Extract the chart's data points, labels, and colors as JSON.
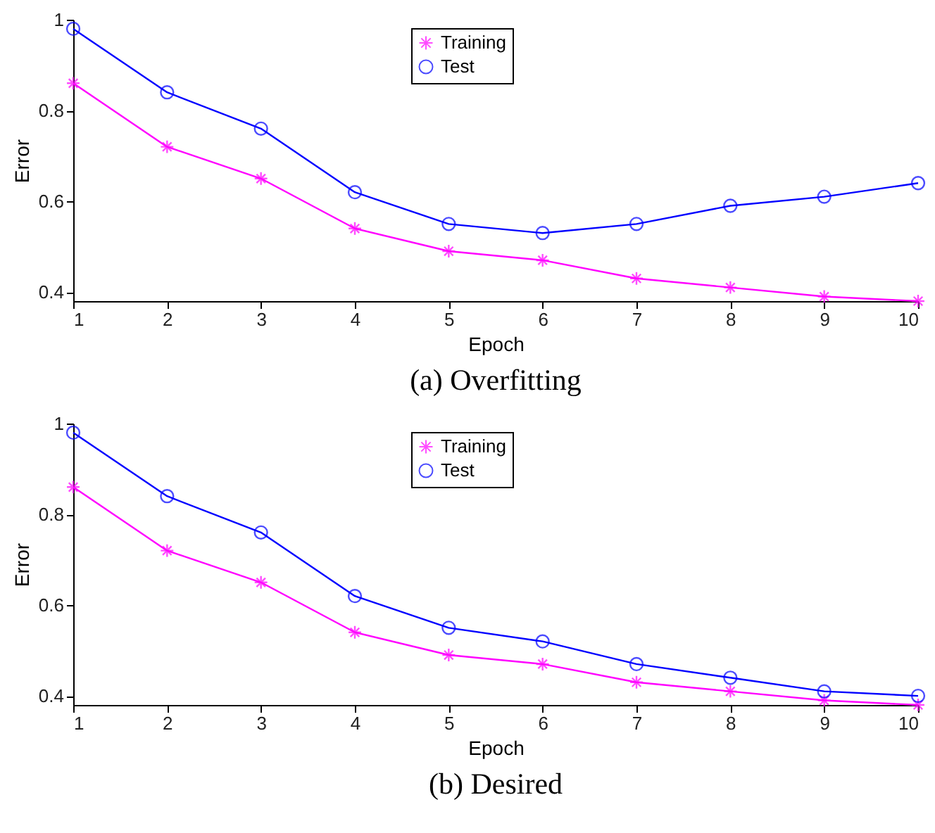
{
  "chart_data": [
    {
      "type": "line",
      "title": "(a) Overfitting",
      "xlabel": "Epoch",
      "ylabel": "Error",
      "x": [
        1,
        2,
        3,
        4,
        5,
        6,
        7,
        8,
        9,
        10
      ],
      "xlim": [
        1,
        10
      ],
      "xticks": [
        1,
        2,
        3,
        4,
        5,
        6,
        7,
        8,
        9,
        10
      ],
      "ylim": [
        0.38,
        1
      ],
      "yticks": [
        0.4,
        0.6,
        0.8,
        1
      ],
      "legend": "top",
      "series": [
        {
          "name": "Training",
          "color": "#ff00ff",
          "marker": "cross",
          "values": [
            0.86,
            0.72,
            0.65,
            0.54,
            0.49,
            0.47,
            0.43,
            0.41,
            0.39,
            0.38
          ]
        },
        {
          "name": "Test",
          "color": "#0000ff",
          "marker": "circle",
          "values": [
            0.98,
            0.84,
            0.76,
            0.62,
            0.55,
            0.53,
            0.55,
            0.59,
            0.61,
            0.64
          ]
        }
      ]
    },
    {
      "type": "line",
      "title": "(b) Desired",
      "xlabel": "Epoch",
      "ylabel": "Error",
      "x": [
        1,
        2,
        3,
        4,
        5,
        6,
        7,
        8,
        9,
        10
      ],
      "xlim": [
        1,
        10
      ],
      "xticks": [
        1,
        2,
        3,
        4,
        5,
        6,
        7,
        8,
        9,
        10
      ],
      "ylim": [
        0.38,
        1
      ],
      "yticks": [
        0.4,
        0.6,
        0.8,
        1
      ],
      "legend": "top",
      "series": [
        {
          "name": "Training",
          "color": "#ff00ff",
          "marker": "cross",
          "values": [
            0.86,
            0.72,
            0.65,
            0.54,
            0.49,
            0.47,
            0.43,
            0.41,
            0.39,
            0.38
          ]
        },
        {
          "name": "Test",
          "color": "#0000ff",
          "marker": "circle",
          "values": [
            0.98,
            0.84,
            0.76,
            0.62,
            0.55,
            0.52,
            0.47,
            0.44,
            0.41,
            0.4
          ]
        }
      ]
    }
  ]
}
